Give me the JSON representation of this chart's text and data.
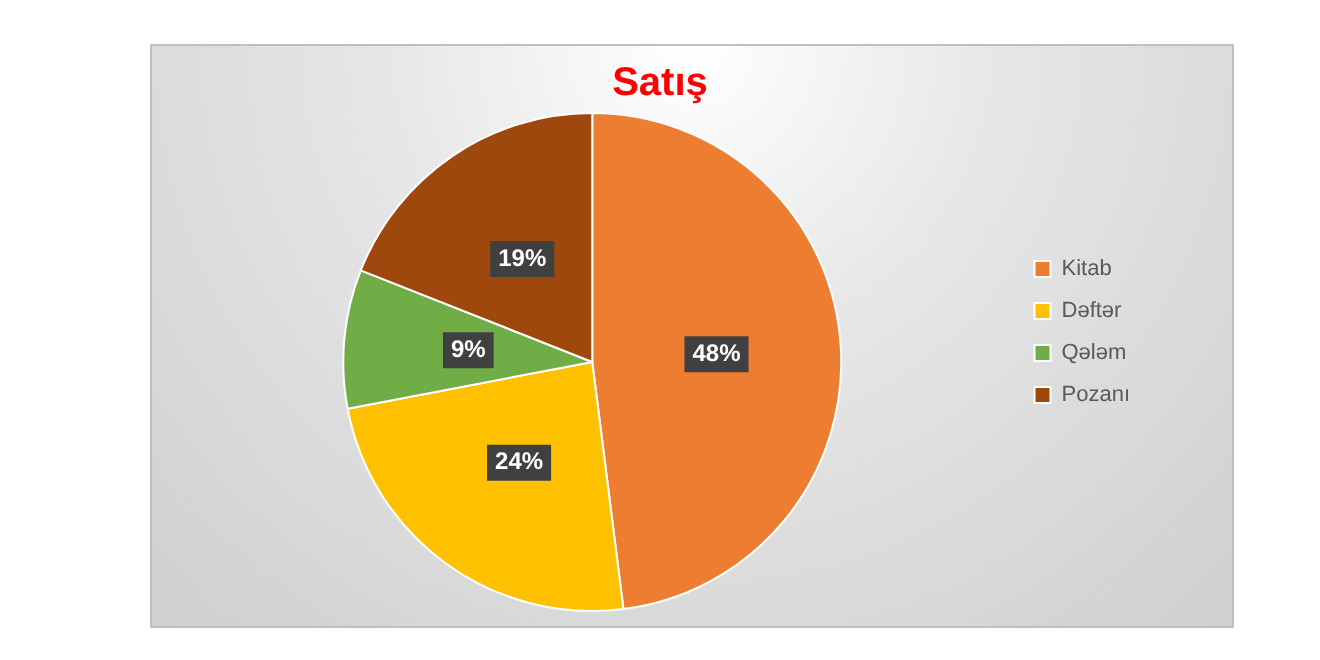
{
  "chart_data": {
    "type": "pie",
    "title": "Satış",
    "categories": [
      "Kitab",
      "Dəftər",
      "Qələm",
      "Pozanı"
    ],
    "values": [
      48,
      24,
      9,
      19
    ],
    "colors": [
      "#ed7d31",
      "#ffc000",
      "#70ad47",
      "#9e480e"
    ],
    "value_labels": [
      "48%",
      "24%",
      "9%",
      "19%"
    ],
    "legend": "right"
  }
}
